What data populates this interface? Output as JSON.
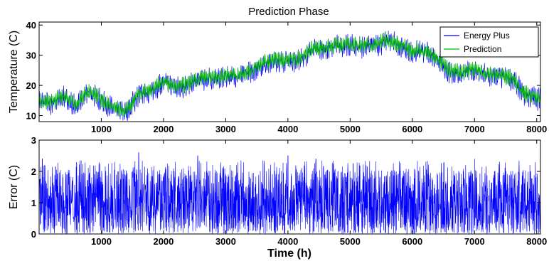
{
  "chart_data": [
    {
      "type": "line",
      "title": "Prediction Phase",
      "xlabel": "",
      "ylabel": "Temperature (C)",
      "xlim": [
        0,
        8060
      ],
      "ylim": [
        8,
        41
      ],
      "x_ticks": [
        1000,
        2000,
        3000,
        4000,
        5000,
        6000,
        7000,
        8000
      ],
      "y_ticks": [
        10,
        20,
        30,
        40
      ],
      "legend_position": "top-right",
      "grid": false,
      "series": [
        {
          "name": "Energy Plus",
          "color": "#0000ff",
          "x": [
            0,
            200,
            400,
            600,
            800,
            1000,
            1200,
            1400,
            1600,
            1800,
            2000,
            2200,
            2400,
            2600,
            2800,
            3000,
            3200,
            3400,
            3600,
            3800,
            4000,
            4200,
            4400,
            4600,
            4800,
            5000,
            5200,
            5400,
            5600,
            5800,
            6000,
            6200,
            6400,
            6600,
            6800,
            7000,
            7200,
            7400,
            7600,
            7800,
            8000
          ],
          "values": [
            14.5,
            14,
            16,
            13,
            18,
            15,
            12,
            11,
            17,
            18,
            21,
            19,
            20,
            22,
            22,
            23,
            23,
            24.5,
            27,
            28,
            28,
            28.5,
            32,
            32,
            33,
            33,
            33,
            33,
            35,
            33,
            31,
            31,
            29,
            24,
            24,
            25,
            23,
            23,
            22,
            17,
            15.5
          ]
        },
        {
          "name": "Prediction",
          "color": "#00bb00",
          "x": [
            0,
            200,
            400,
            600,
            800,
            1000,
            1200,
            1400,
            1600,
            1800,
            2000,
            2200,
            2400,
            2600,
            2800,
            3000,
            3200,
            3400,
            3600,
            3800,
            4000,
            4200,
            4400,
            4600,
            4800,
            5000,
            5200,
            5400,
            5600,
            5800,
            6000,
            6200,
            6400,
            6600,
            6800,
            7000,
            7200,
            7400,
            7600,
            7800,
            8000
          ],
          "values": [
            15,
            14.5,
            16.5,
            13.5,
            18.5,
            15.5,
            12.5,
            11.5,
            17.5,
            18.5,
            21.5,
            19.5,
            20.5,
            22.5,
            22.5,
            23.5,
            23.5,
            25,
            27.5,
            28.5,
            28.5,
            29,
            32.5,
            32.5,
            33.5,
            33.5,
            33.5,
            33.5,
            35.5,
            33.5,
            31.5,
            31.5,
            29.5,
            24.5,
            24.5,
            25.5,
            23.5,
            23.5,
            22.5,
            17.5,
            16
          ]
        }
      ]
    },
    {
      "type": "line",
      "title": "",
      "xlabel": "Time (h)",
      "ylabel": "Error (C)",
      "xlim": [
        0,
        8060
      ],
      "ylim": [
        0,
        3
      ],
      "x_ticks": [
        1000,
        2000,
        3000,
        4000,
        5000,
        6000,
        7000,
        8000
      ],
      "y_ticks": [
        0,
        1,
        2,
        3
      ],
      "grid": false,
      "series": [
        {
          "color": "#0000ff",
          "typical_range": [
            0,
            2.6
          ],
          "peaks": [
            {
              "x": 50,
              "y": 2.4
            },
            {
              "x": 1600,
              "y": 2.6
            },
            {
              "x": 2550,
              "y": 2.5
            },
            {
              "x": 4000,
              "y": 2.5
            },
            {
              "x": 4450,
              "y": 2.4
            },
            {
              "x": 7000,
              "y": 2.4
            },
            {
              "x": 7900,
              "y": 2.0
            }
          ]
        }
      ]
    }
  ]
}
